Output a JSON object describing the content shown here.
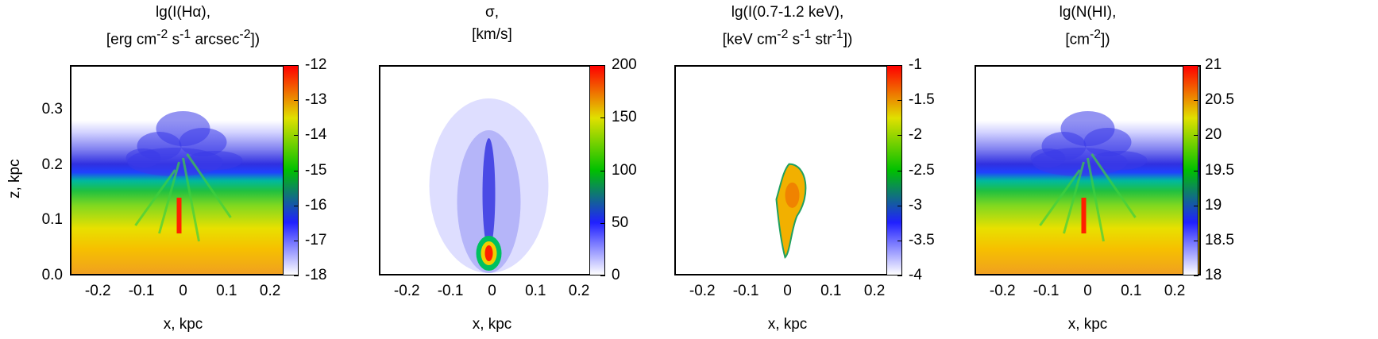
{
  "chart_data": [
    {
      "type": "heatmap",
      "title_lines": [
        "lg(I(Hα),",
        "[erg cm<sup>-2</sup> s<sup>-1</sup> arcsec<sup>-2</sup>])"
      ],
      "xlabel": "x, kpc",
      "ylabel": "z, kpc",
      "xlim": [
        -0.26,
        0.26
      ],
      "ylim": [
        0.0,
        0.38
      ],
      "xticks": [
        "-0.2",
        "-0.1",
        "0",
        "0.1",
        "0.2"
      ],
      "yticks": [
        "0.0",
        "0.1",
        "0.2",
        "0.3"
      ],
      "colorbar": {
        "range": [
          -18,
          -12
        ],
        "ticks": [
          "-12",
          "-13",
          "-14",
          "-15",
          "-16",
          "-17",
          "-18"
        ]
      }
    },
    {
      "type": "heatmap",
      "title_lines": [
        "σ,",
        "[km/s]"
      ],
      "xlabel": "x, kpc",
      "xlim": [
        -0.26,
        0.26
      ],
      "xticks": [
        "-0.2",
        "-0.1",
        "0",
        "0.1",
        "0.2"
      ],
      "colorbar": {
        "range": [
          0,
          200
        ],
        "ticks": [
          "200",
          "150",
          "100",
          "50",
          "0"
        ]
      }
    },
    {
      "type": "heatmap",
      "title_lines": [
        "lg(I(0.7-1.2 keV),",
        "[keV cm<sup>-2</sup> s<sup>-1</sup> str<sup>-1</sup>])"
      ],
      "xlabel": "x, kpc",
      "xlim": [
        -0.26,
        0.26
      ],
      "xticks": [
        "-0.2",
        "-0.1",
        "0",
        "0.1",
        "0.2"
      ],
      "colorbar": {
        "range": [
          -4,
          -1
        ],
        "ticks": [
          "-1",
          "-1.5",
          "-2",
          "-2.5",
          "-3",
          "-3.5",
          "-4"
        ]
      }
    },
    {
      "type": "heatmap",
      "title_lines": [
        "lg(N(HI),",
        "[cm<sup>-2</sup>])"
      ],
      "xlabel": "x, kpc",
      "xlim": [
        -0.26,
        0.26
      ],
      "xticks": [
        "-0.2",
        "-0.1",
        "0",
        "0.1",
        "0.2"
      ],
      "colorbar": {
        "range": [
          18,
          21
        ],
        "ticks": [
          "21",
          "20.5",
          "20",
          "19.5",
          "19",
          "18.5",
          "18"
        ]
      }
    }
  ],
  "colors": {
    "colormap": [
      "#ffffff",
      "#2020ff",
      "#00c000",
      "#e0e000",
      "#ff0000"
    ]
  }
}
